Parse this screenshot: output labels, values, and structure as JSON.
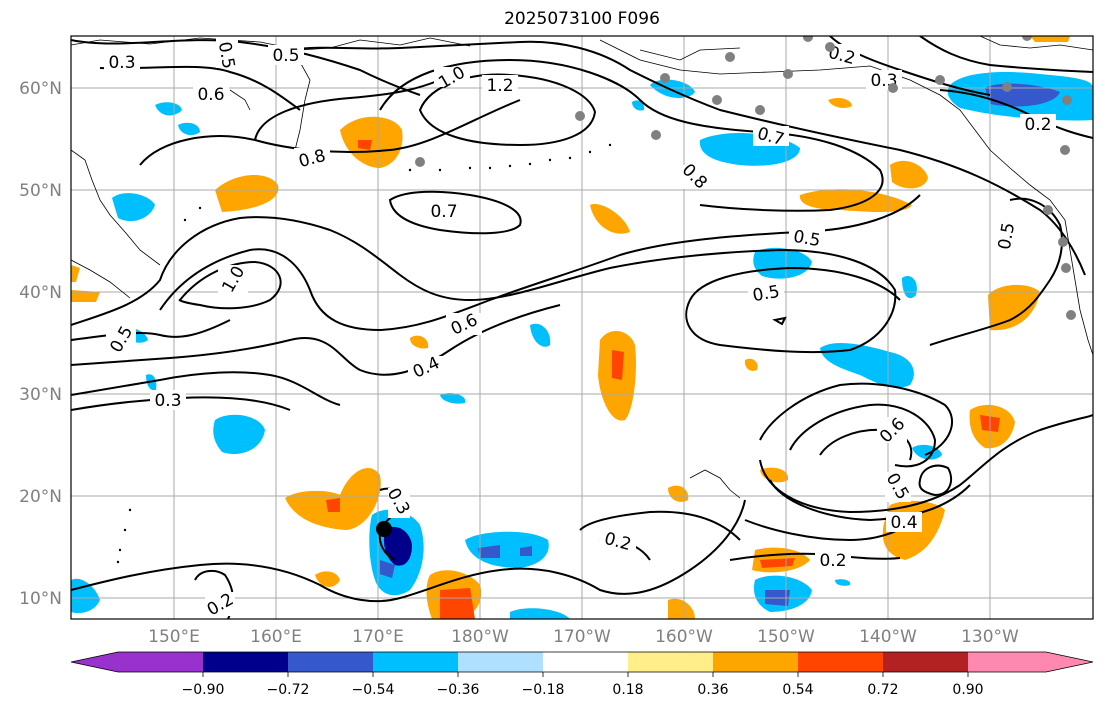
{
  "title": "2025073100 F096",
  "map": {
    "lat_labels": [
      "10°N",
      "20°N",
      "30°N",
      "40°N",
      "50°N",
      "60°N"
    ],
    "lon_labels": [
      "150°E",
      "160°E",
      "170°E",
      "180°W",
      "170°W",
      "160°W",
      "150°W",
      "140°W",
      "130°W"
    ],
    "contour_labels": [
      "0.3",
      "0.5",
      "0.5",
      "0.6",
      "1.0",
      "1.2",
      "0.8",
      "0.7",
      "0.2",
      "0.3",
      "0.7",
      "0.8",
      "0.5",
      "0.5",
      "0.5",
      "0.2",
      "1.0",
      "0.5",
      "0.6",
      "0.4",
      "0.3",
      "0.6",
      "0.5",
      "0.4",
      "0.2",
      "0.2",
      "0.3",
      "0.2"
    ]
  },
  "colorbar": {
    "ticks": [
      "−0.90",
      "−0.72",
      "−0.54",
      "−0.36",
      "−0.18",
      "0.18",
      "0.36",
      "0.54",
      "0.72",
      "0.90"
    ],
    "colors": [
      "#9932cc",
      "#00008b",
      "#3558cc",
      "#00bfff",
      "#b0e0ff",
      "#ffffff",
      "#ffee8a",
      "#ffa500",
      "#ff4500",
      "#b22222",
      "#ff88b0"
    ]
  }
}
